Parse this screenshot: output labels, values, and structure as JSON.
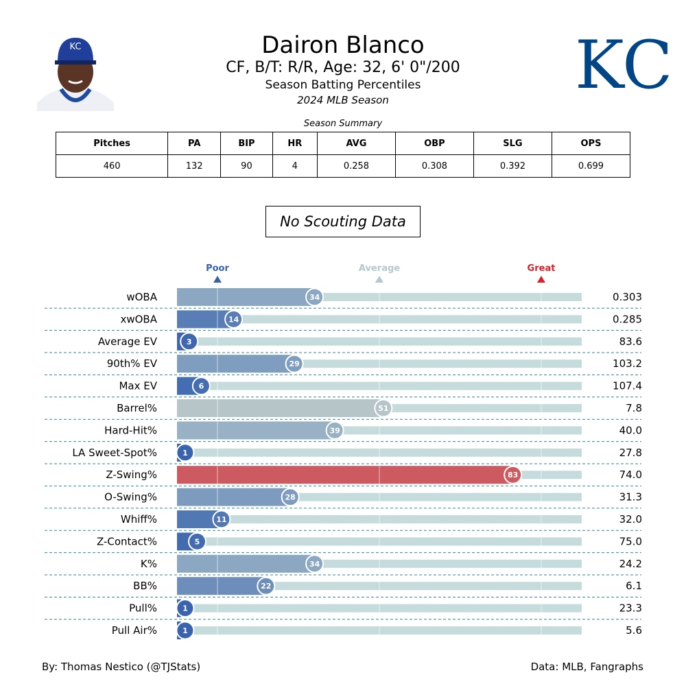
{
  "header": {
    "player_name": "Dairon Blanco",
    "bio": "CF, B/T: R/R, Age: 32, 6' 0\"/200",
    "subtitle": "Season Batting Percentiles",
    "season": "2024 MLB Season",
    "team_logo_text": "KC",
    "team_color": "#004687"
  },
  "summary": {
    "title": "Season Summary",
    "columns": [
      "Pitches",
      "PA",
      "BIP",
      "HR",
      "AVG",
      "OBP",
      "SLG",
      "OPS"
    ],
    "values": [
      "460",
      "132",
      "90",
      "4",
      "0.258",
      "0.308",
      "0.392",
      "0.699"
    ]
  },
  "scouting": "No Scouting Data",
  "chart_data": {
    "type": "bar",
    "orientation": "horizontal",
    "xlim": [
      0,
      100
    ],
    "reference_labels": [
      {
        "label": "Poor",
        "percentile": 10,
        "color": "#3661ad"
      },
      {
        "label": "Average",
        "percentile": 50,
        "color": "#b4c8cb"
      },
      {
        "label": "Great",
        "percentile": 90,
        "color": "#d82129"
      }
    ],
    "categories": [
      "wOBA",
      "xwOBA",
      "Average EV",
      "90th% EV",
      "Max EV",
      "Barrel%",
      "Hard-Hit%",
      "LA Sweet-Spot%",
      "Z-Swing%",
      "O-Swing%",
      "Whiff%",
      "Z-Contact%",
      "K%",
      "BB%",
      "Pull%",
      "Pull Air%"
    ],
    "percentiles": [
      34,
      14,
      3,
      29,
      6,
      51,
      39,
      1,
      83,
      28,
      11,
      5,
      34,
      22,
      1,
      1
    ],
    "stat_values": [
      "0.303",
      "0.285",
      "83.6",
      "103.2",
      "107.4",
      "7.8",
      "40.0",
      "27.8",
      "74.0",
      "31.3",
      "32.0",
      "75.0",
      "24.2",
      "6.1",
      "23.3",
      "5.6"
    ]
  },
  "footer": {
    "credit": "By: Thomas Nestico (@TJStats)",
    "source": "Data: MLB, Fangraphs"
  }
}
